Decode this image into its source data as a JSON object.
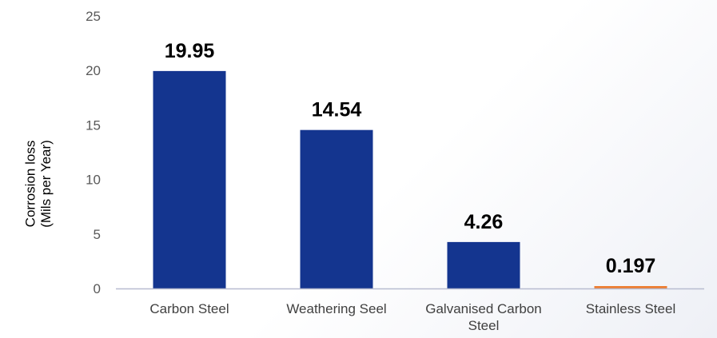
{
  "chart_data": {
    "type": "bar",
    "title": "",
    "xlabel": "",
    "ylabel_lines": [
      "Corrosion loss",
      "(Mils per Year)"
    ],
    "categories": [
      [
        "Carbon Steel"
      ],
      [
        "Weathering Seel"
      ],
      [
        "Galvanised Carbon",
        "Steel"
      ],
      [
        "Stainless Steel"
      ]
    ],
    "values": [
      19.95,
      14.54,
      4.26,
      0.197
    ],
    "data_labels": [
      "19.95",
      "14.54",
      "4.26",
      "0.197"
    ],
    "bar_colors": [
      "#14358f",
      "#14358f",
      "#14358f",
      "#ed7d31"
    ],
    "ylim": [
      0,
      25
    ],
    "yticks": [
      0,
      5,
      10,
      15,
      20,
      25
    ],
    "grid": false,
    "legend": "none",
    "axis_color": "#b8bcd0"
  }
}
